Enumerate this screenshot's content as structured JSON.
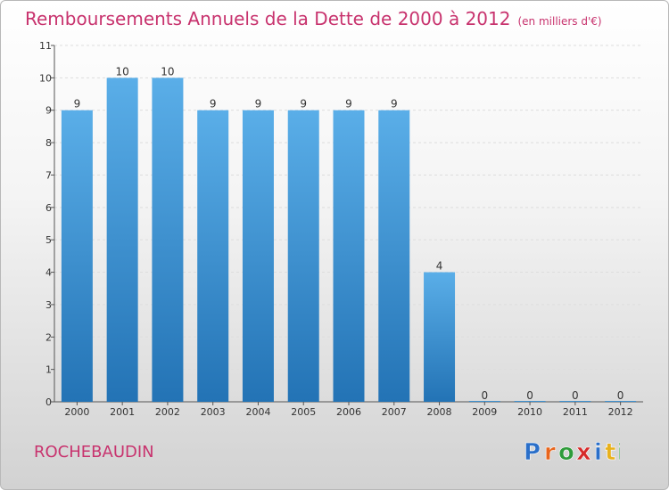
{
  "title": "Remboursements Annuels de la Dette de 2000 à 2012",
  "unit": "(en milliers d'€)",
  "commune": "ROCHEBAUDIN",
  "brand": {
    "letters": [
      "P",
      "r",
      "o",
      "x",
      "i",
      "t",
      "i"
    ],
    "colors": [
      "#2a6fc9",
      "#e8651c",
      "#2e9b3a",
      "#d62a2a",
      "#2a6fc9",
      "#e8b11c",
      "#2e9b3a"
    ]
  },
  "chart_data": {
    "type": "bar",
    "title": "Remboursements Annuels de la Dette de 2000 à 2012",
    "categories": [
      "2000",
      "2001",
      "2002",
      "2003",
      "2004",
      "2005",
      "2006",
      "2007",
      "2008",
      "2009",
      "2010",
      "2011",
      "2012"
    ],
    "values": [
      9,
      10,
      10,
      9,
      9,
      9,
      9,
      9,
      4,
      0,
      0,
      0,
      0
    ],
    "value_labels": [
      "9",
      "10",
      "10",
      "9",
      "9",
      "9",
      "9",
      "9",
      "4",
      "0",
      "0",
      "0",
      "0"
    ],
    "y_ticks": [
      0,
      1,
      2,
      3,
      4,
      5,
      6,
      7,
      8,
      9,
      10,
      11
    ],
    "ylim": [
      0,
      11
    ],
    "grid": true,
    "bar_color_top": "#5aaee8",
    "bar_color_bottom": "#2373b5"
  }
}
